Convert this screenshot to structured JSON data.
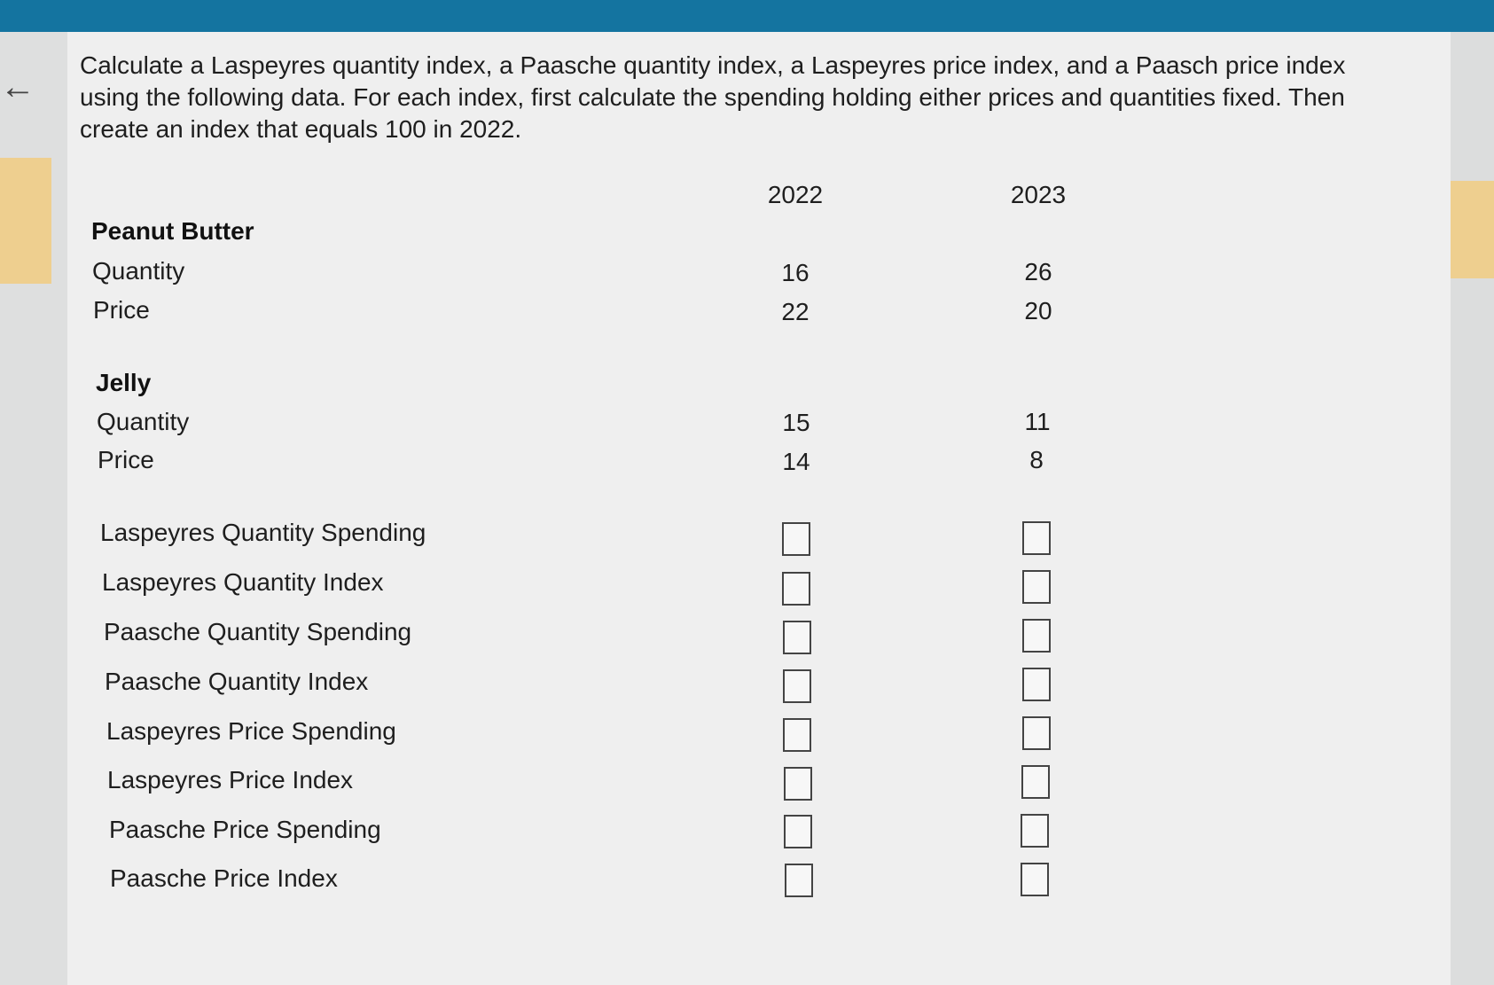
{
  "question": "Calculate a Laspeyres quantity index, a Paasche quantity index, a Laspeyres price index, and a Paasch price index using the following data. For each index, first calculate the spending holding either prices and quantities fixed. Then create an index that equals 100 in 2022.",
  "columns": [
    "2022",
    "2023"
  ],
  "products": [
    {
      "name": "Peanut Butter",
      "rows": [
        {
          "label": "Quantity",
          "values": [
            "16",
            "26"
          ]
        },
        {
          "label": "Price",
          "values": [
            "22",
            "20"
          ]
        }
      ]
    },
    {
      "name": "Jelly",
      "rows": [
        {
          "label": "Quantity",
          "values": [
            "15",
            "11"
          ]
        },
        {
          "label": "Price",
          "values": [
            "14",
            "8"
          ]
        }
      ]
    }
  ],
  "calc_rows": [
    {
      "label": "Laspeyres Quantity Spending",
      "values": [
        "",
        ""
      ]
    },
    {
      "label": "Laspeyres Quantity Index",
      "values": [
        "",
        ""
      ]
    },
    {
      "label": "Paasche Quantity Spending",
      "values": [
        "",
        ""
      ]
    },
    {
      "label": "Paasche Quantity Index",
      "values": [
        "",
        ""
      ]
    },
    {
      "label": "Laspeyres Price Spending",
      "values": [
        "",
        ""
      ]
    },
    {
      "label": "Laspeyres Price Index",
      "values": [
        "",
        ""
      ]
    },
    {
      "label": "Paasche Price Spending",
      "values": [
        "",
        ""
      ]
    },
    {
      "label": "Paasche Price Index",
      "values": [
        "",
        ""
      ]
    }
  ],
  "icons": {
    "back": "arrow-left-icon"
  }
}
